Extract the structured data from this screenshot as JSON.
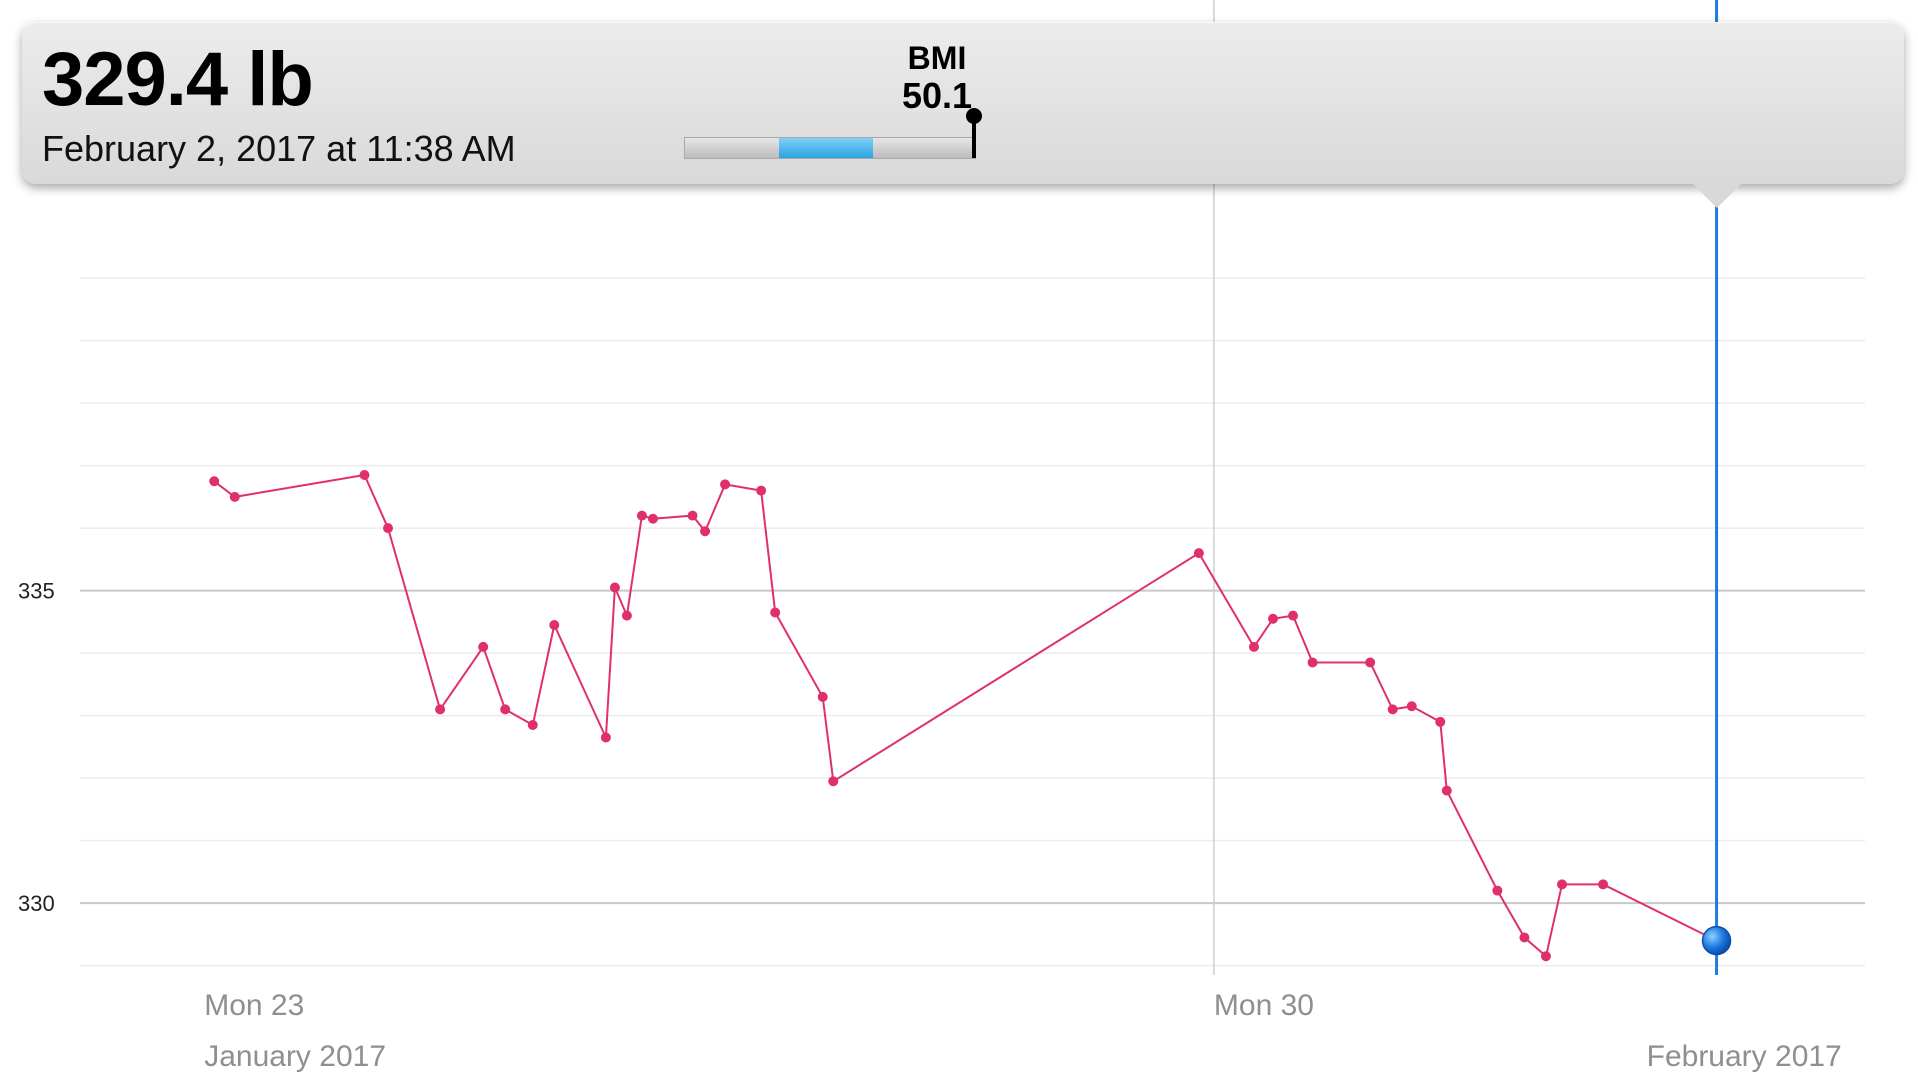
{
  "tooltip": {
    "weight": "329.4 lb",
    "date": "February 2, 2017 at 11:38 AM",
    "bmi_label": "BMI",
    "bmi_value": "50.1",
    "bmi_scale_position": 1.0
  },
  "chart_data": {
    "type": "line",
    "title": "",
    "xlabel": "",
    "ylabel": "",
    "ylim": [
      328.85,
      341.25
    ],
    "xlim": [
      "2017-01-22T03:20",
      "2017-02-03T12:20"
    ],
    "yticks": [
      {
        "value": 330,
        "label": "330"
      },
      {
        "value": 335,
        "label": "335"
      }
    ],
    "gridlines": [
      329,
      330,
      331,
      332,
      333,
      334,
      335,
      336,
      337,
      338,
      339,
      340
    ],
    "xticks": [
      {
        "value": "2017-01-23T00:00",
        "label": "Mon 23"
      },
      {
        "value": "2017-01-30T00:00",
        "label": "Mon 30"
      }
    ],
    "month_labels": [
      {
        "value": "2017-01-23T00:00",
        "label": "January 2017"
      },
      {
        "value": "2017-02-02T00:00",
        "label": "February 2017"
      }
    ],
    "vertical_reference": {
      "value": "2017-01-30T00:00"
    },
    "selected_x": "2017-02-02T11:38",
    "series_color": "#e0306a",
    "selection_color": "#1e7be0",
    "series": [
      {
        "name": "",
        "points": [
          [
            "2017-01-23T01:40",
            336.75
          ],
          [
            "2017-01-23T05:05",
            336.5
          ],
          [
            "2017-01-24T02:40",
            336.85
          ],
          [
            "2017-01-24T06:35",
            336.0
          ],
          [
            "2017-01-24T15:15",
            333.1
          ],
          [
            "2017-01-24T22:25",
            334.1
          ],
          [
            "2017-01-25T02:05",
            333.1
          ],
          [
            "2017-01-25T06:40",
            332.85
          ],
          [
            "2017-01-25T10:15",
            334.45
          ],
          [
            "2017-01-25T18:50",
            332.65
          ],
          [
            "2017-01-25T20:20",
            335.05
          ],
          [
            "2017-01-25T22:20",
            334.6
          ],
          [
            "2017-01-26T00:50",
            336.2
          ],
          [
            "2017-01-26T02:40",
            336.15
          ],
          [
            "2017-01-26T09:15",
            336.2
          ],
          [
            "2017-01-26T11:20",
            335.95
          ],
          [
            "2017-01-26T14:40",
            336.7
          ],
          [
            "2017-01-26T20:40",
            336.6
          ],
          [
            "2017-01-26T23:00",
            334.65
          ],
          [
            "2017-01-27T06:55",
            333.3
          ],
          [
            "2017-01-27T08:40",
            331.95
          ],
          [
            "2017-01-29T21:30",
            335.6
          ],
          [
            "2017-01-30T06:40",
            334.1
          ],
          [
            "2017-01-30T09:50",
            334.55
          ],
          [
            "2017-01-30T13:10",
            334.6
          ],
          [
            "2017-01-30T16:25",
            333.85
          ],
          [
            "2017-01-31T02:00",
            333.85
          ],
          [
            "2017-01-31T05:45",
            333.1
          ],
          [
            "2017-01-31T08:55",
            333.15
          ],
          [
            "2017-01-31T13:40",
            332.9
          ],
          [
            "2017-01-31T14:45",
            331.8
          ],
          [
            "2017-01-31T23:10",
            330.2
          ],
          [
            "2017-02-01T03:40",
            329.45
          ],
          [
            "2017-02-01T07:15",
            329.15
          ],
          [
            "2017-02-01T09:55",
            330.3
          ],
          [
            "2017-02-01T16:45",
            330.3
          ],
          [
            "2017-02-02T11:38",
            329.4
          ]
        ]
      }
    ]
  }
}
